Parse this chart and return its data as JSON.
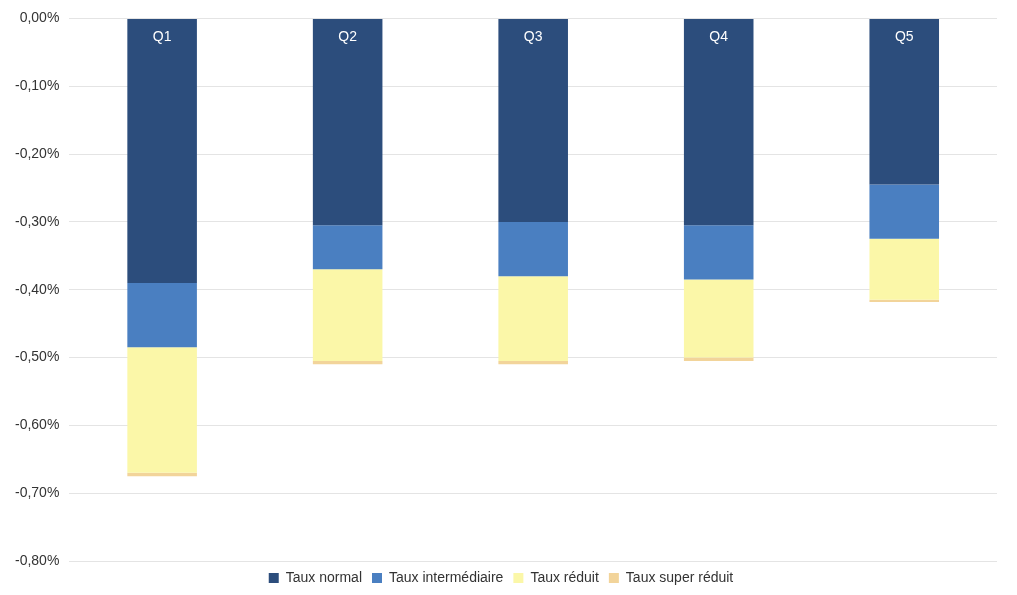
{
  "chart_data": {
    "type": "bar",
    "stacked": true,
    "categories": [
      "Q1",
      "Q2",
      "Q3",
      "Q4",
      "Q5"
    ],
    "series": [
      {
        "name": "Taux normal",
        "color": "#2c4d7c",
        "values": [
          -0.39,
          -0.305,
          -0.3,
          -0.305,
          -0.245
        ]
      },
      {
        "name": "Taux intermédiaire",
        "color": "#4a7fc1",
        "values": [
          -0.095,
          -0.065,
          -0.08,
          -0.08,
          -0.08
        ]
      },
      {
        "name": "Taux réduit",
        "color": "#fbf7a8",
        "values": [
          -0.185,
          -0.135,
          -0.125,
          -0.115,
          -0.09
        ]
      },
      {
        "name": "Taux super réduit",
        "color": "#f2d49a",
        "values": [
          -0.005,
          -0.005,
          -0.005,
          -0.005,
          -0.003
        ]
      }
    ],
    "ylim": [
      -0.8,
      0
    ],
    "yticks": [
      {
        "value": 0,
        "label": "0,00%"
      },
      {
        "value": -0.1,
        "label": "-0,10%"
      },
      {
        "value": -0.2,
        "label": "-0,20%"
      },
      {
        "value": -0.3,
        "label": "-0,30%"
      },
      {
        "value": -0.4,
        "label": "-0,40%"
      },
      {
        "value": -0.5,
        "label": "-0,50%"
      },
      {
        "value": -0.6,
        "label": "-0,60%"
      },
      {
        "value": -0.7,
        "label": "-0,70%"
      },
      {
        "value": -0.8,
        "label": "-0,80%"
      }
    ],
    "grid": "y",
    "legend": "bottom"
  }
}
